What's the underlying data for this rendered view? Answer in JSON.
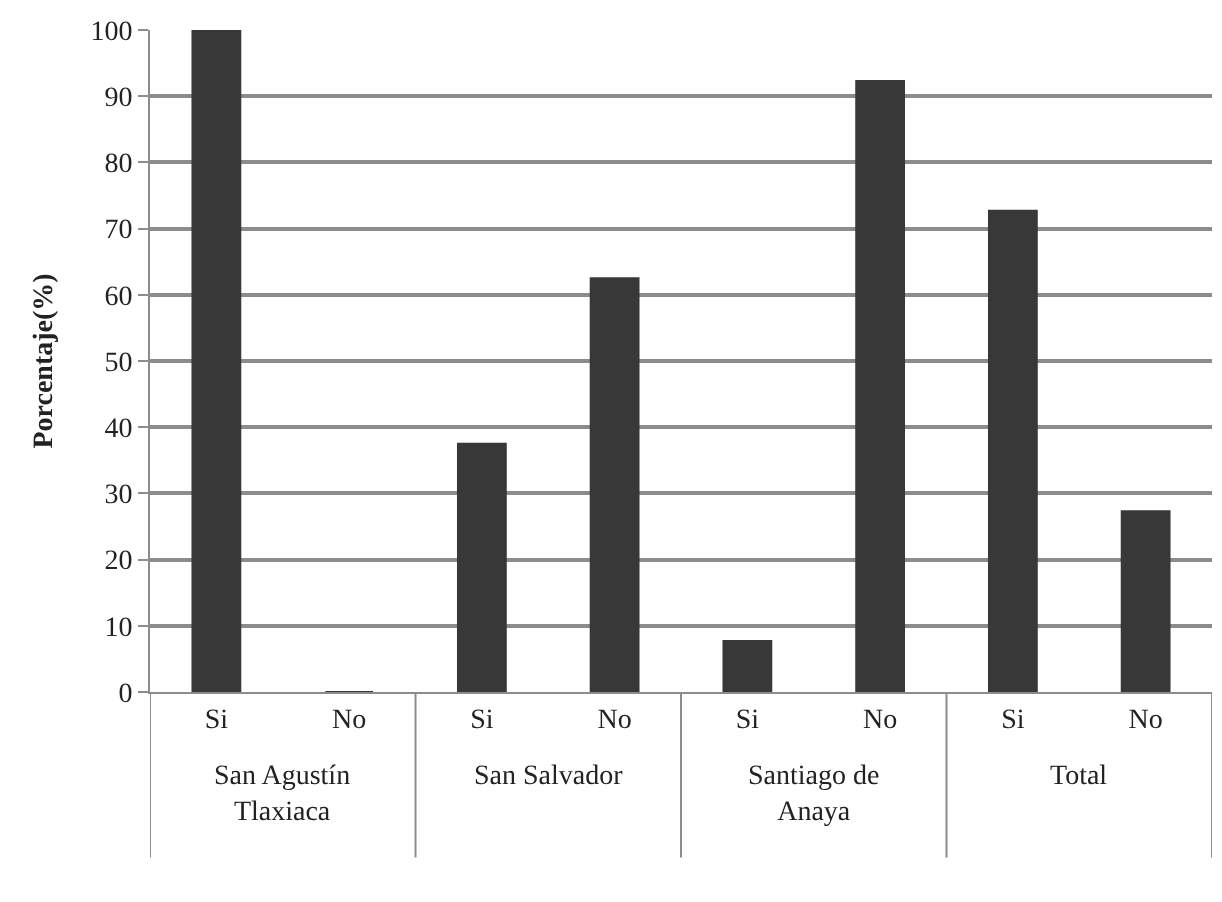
{
  "chart_data": {
    "type": "bar",
    "ylabel": "Porcentaje(%)",
    "categories": [
      "Si",
      "No",
      "Si",
      "No",
      "Si",
      "No",
      "Si",
      "No"
    ],
    "values": [
      100,
      0,
      37.5,
      62.5,
      7.7,
      92.3,
      72.7,
      27.3
    ],
    "color": "#383838",
    "ylim": [
      0,
      100
    ],
    "yticks": [
      0,
      10,
      20,
      30,
      40,
      50,
      60,
      70,
      80,
      90,
      100
    ],
    "grid": "y",
    "annotations": [
      "San Agustín\nTlaxiaca",
      "San Salvador",
      "Santiago de\nAnaya",
      "Total"
    ]
  }
}
